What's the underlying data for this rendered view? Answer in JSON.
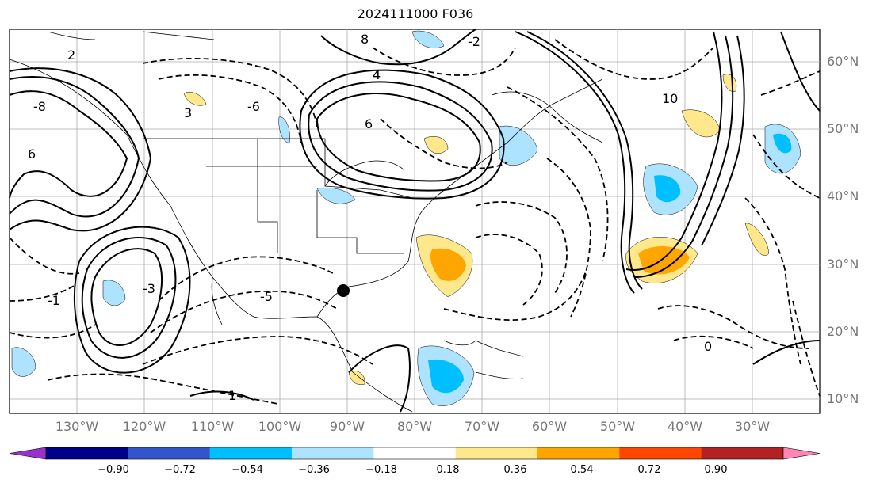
{
  "title": "2024111000 F036",
  "map": {
    "lon_labels": [
      "130°W",
      "120°W",
      "110°W",
      "100°W",
      "90°W",
      "80°W",
      "70°W",
      "60°W",
      "50°W",
      "40°W",
      "30°W"
    ],
    "lat_labels": [
      "60°N",
      "50°N",
      "40°N",
      "30°N",
      "20°N",
      "10°N"
    ],
    "contour_labels": [
      "8",
      "6",
      "4",
      "2",
      "-2",
      "-6",
      "-8",
      "-3",
      "0",
      "-1",
      "-5",
      "1",
      "3",
      "10",
      "6"
    ],
    "colors": {
      "contour": "#000000",
      "gridline": "#aaaaaa",
      "coast": "#000000"
    }
  },
  "colorbar": {
    "ticks": [
      "−0.90",
      "−0.72",
      "−0.54",
      "−0.36",
      "−0.18",
      "0.18",
      "0.36",
      "0.54",
      "0.72",
      "0.90"
    ],
    "colors": [
      "#9932CC",
      "#00008B",
      "#3355CC",
      "#00BFFF",
      "#AEE3FF",
      "#FFFFFF",
      "#FFE88C",
      "#FFA500",
      "#FF4500",
      "#B22222",
      "#FF85B5"
    ]
  }
}
